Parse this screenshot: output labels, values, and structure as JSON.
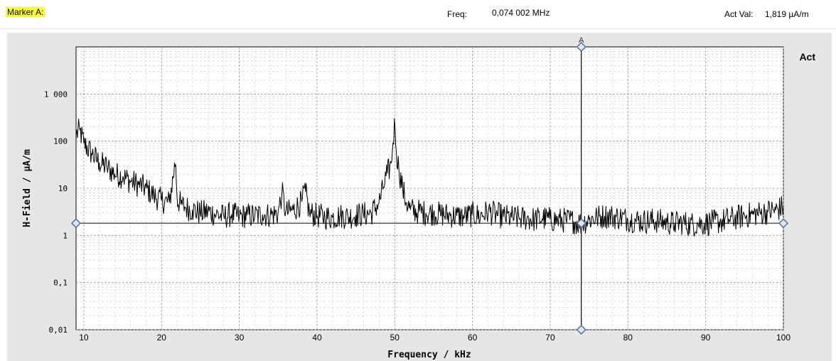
{
  "header": {
    "marker_label": "Marker A:",
    "freq_label": "Freq:",
    "freq_value": "0,074 002 MHz",
    "act_label": "Act  Val:",
    "act_value": "1,819 µA/m"
  },
  "colors": {
    "marker_highlight": "#ffff33",
    "trace": "#000000",
    "marker": "#4a6d9a",
    "plot_bg": "#ffffff",
    "panel_bg": "#e6e6e6"
  },
  "chart_data": {
    "type": "line",
    "title": "",
    "xlabel": "Frequency / kHz",
    "ylabel": "H-Field / µA/m",
    "xlim": [
      9,
      100
    ],
    "ylim": [
      0.01,
      10000
    ],
    "y_scale": "log",
    "grid": true,
    "trace_label": "Act",
    "x_ticks": [
      10,
      20,
      30,
      40,
      50,
      60,
      70,
      80,
      90,
      100
    ],
    "x_tick_labels": [
      "10",
      "20",
      "30",
      "40",
      "50",
      "60",
      "70",
      "80",
      "90",
      "100"
    ],
    "y_ticks": [
      0.01,
      0.1,
      1,
      10,
      100,
      1000
    ],
    "y_tick_labels": [
      "0,01",
      "0,1",
      "1",
      "10",
      "100",
      "1 000"
    ],
    "marker": {
      "name": "A",
      "x": 74.0,
      "y": 1.819
    },
    "series": [
      {
        "values_x": [
          9,
          9.5,
          10,
          11,
          12,
          13,
          14,
          15,
          16,
          17,
          18,
          19,
          20,
          21,
          21.8,
          22,
          22.5,
          23,
          24,
          25,
          26,
          27,
          28,
          29,
          30,
          31,
          32,
          33,
          34,
          35,
          35.5,
          36,
          37,
          38,
          38.5,
          39,
          40,
          41,
          42,
          43,
          44,
          45,
          46,
          47,
          48,
          48.5,
          49,
          49.5,
          49.8,
          50,
          50.2,
          50.5,
          51,
          51.5,
          52,
          53,
          54,
          55,
          56,
          57,
          58,
          59,
          60,
          61,
          62,
          63,
          64,
          65,
          66,
          67,
          68,
          69,
          70,
          71,
          72,
          73,
          74,
          75,
          76,
          77,
          78,
          79,
          80,
          81,
          82,
          83,
          84,
          85,
          86,
          87,
          88,
          89,
          90,
          91,
          92,
          93,
          94,
          95,
          96,
          97,
          98,
          99,
          100
        ],
        "values_y": [
          140,
          170,
          90,
          55,
          35,
          28,
          20,
          18,
          14,
          12,
          10,
          7,
          5.5,
          5,
          40,
          6,
          4.5,
          4,
          3.5,
          3,
          3.2,
          2.8,
          2.5,
          2.8,
          2.5,
          2.7,
          2.6,
          2.8,
          2.7,
          3,
          8,
          3,
          3.5,
          5,
          9,
          3,
          2.6,
          2.5,
          2.4,
          2.6,
          2.5,
          2.7,
          2.8,
          3,
          5,
          10,
          20,
          30,
          100,
          250,
          60,
          28,
          10,
          5,
          3.5,
          3.2,
          3,
          3,
          2.8,
          2.7,
          2.6,
          2.5,
          2.8,
          2.6,
          3.2,
          2.8,
          2.5,
          2.4,
          2.3,
          2.3,
          2.2,
          2.3,
          2.2,
          2.1,
          2.1,
          2,
          1.8,
          2.2,
          2.4,
          2.6,
          2.5,
          2.4,
          2.2,
          2.1,
          2,
          2.1,
          2,
          1.9,
          1.8,
          1.9,
          1.7,
          1.8,
          1.8,
          1.9,
          2,
          2.2,
          2.4,
          2.6,
          2.8,
          3,
          3.2,
          3.4,
          4
        ]
      }
    ]
  }
}
